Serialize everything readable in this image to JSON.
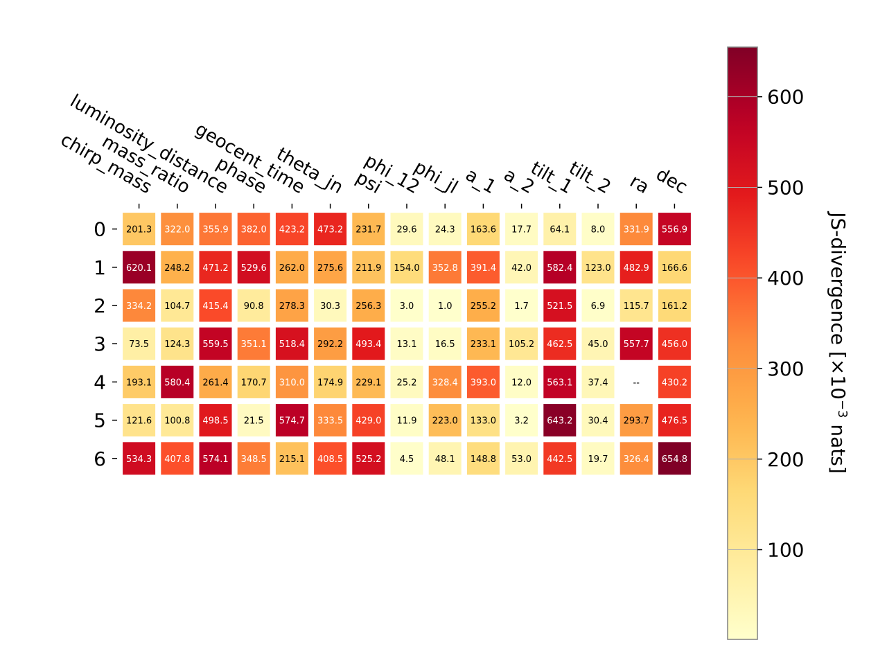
{
  "chart_data": {
    "type": "heatmap",
    "x_labels": [
      "chirp_mass",
      "mass_ratio",
      "luminosity_distance",
      "phase",
      "geocent_time",
      "theta_jn",
      "psi",
      "phi_12",
      "phi_jl",
      "a_1",
      "a_2",
      "tilt_1",
      "tilt_2",
      "ra",
      "dec"
    ],
    "y_labels": [
      "0",
      "1",
      "2",
      "3",
      "4",
      "5",
      "6"
    ],
    "values": [
      [
        201.3,
        322.0,
        355.9,
        382.0,
        423.2,
        473.2,
        231.7,
        29.6,
        24.3,
        163.6,
        17.7,
        64.1,
        8.0,
        331.9,
        556.9
      ],
      [
        620.1,
        248.2,
        471.2,
        529.6,
        262.0,
        275.6,
        211.9,
        154.0,
        352.8,
        391.4,
        42.0,
        582.4,
        123.0,
        482.9,
        166.6
      ],
      [
        334.2,
        104.7,
        415.4,
        90.8,
        278.3,
        30.3,
        256.3,
        3.0,
        1.0,
        255.2,
        1.7,
        521.5,
        6.9,
        115.7,
        161.2
      ],
      [
        73.5,
        124.3,
        559.5,
        351.1,
        518.4,
        292.2,
        493.4,
        13.1,
        16.5,
        233.1,
        105.2,
        462.5,
        45.0,
        557.7,
        456.0
      ],
      [
        193.1,
        580.4,
        261.4,
        170.7,
        310.0,
        174.9,
        229.1,
        25.2,
        328.4,
        393.0,
        12.0,
        563.1,
        37.4,
        null,
        430.2
      ],
      [
        121.6,
        100.8,
        498.5,
        21.5,
        574.7,
        333.5,
        429.0,
        11.9,
        223.0,
        133.0,
        3.2,
        643.2,
        30.4,
        293.7,
        476.5
      ],
      [
        534.3,
        407.8,
        574.1,
        348.5,
        215.1,
        408.5,
        525.2,
        4.5,
        48.1,
        148.8,
        53.0,
        442.5,
        19.7,
        326.4,
        654.8
      ]
    ],
    "missing_label": "--",
    "colorbar": {
      "label": "JS-divergence [×10",
      "label_exp": "−3",
      "label_suffix": " nats]",
      "ticks": [
        100,
        200,
        300,
        400,
        500,
        600
      ],
      "tick_labels": [
        "100",
        "200",
        "300",
        "400",
        "500",
        "600"
      ],
      "range": [
        1.0,
        654.8
      ],
      "colormap": "YlOrRd"
    },
    "grid": false
  }
}
